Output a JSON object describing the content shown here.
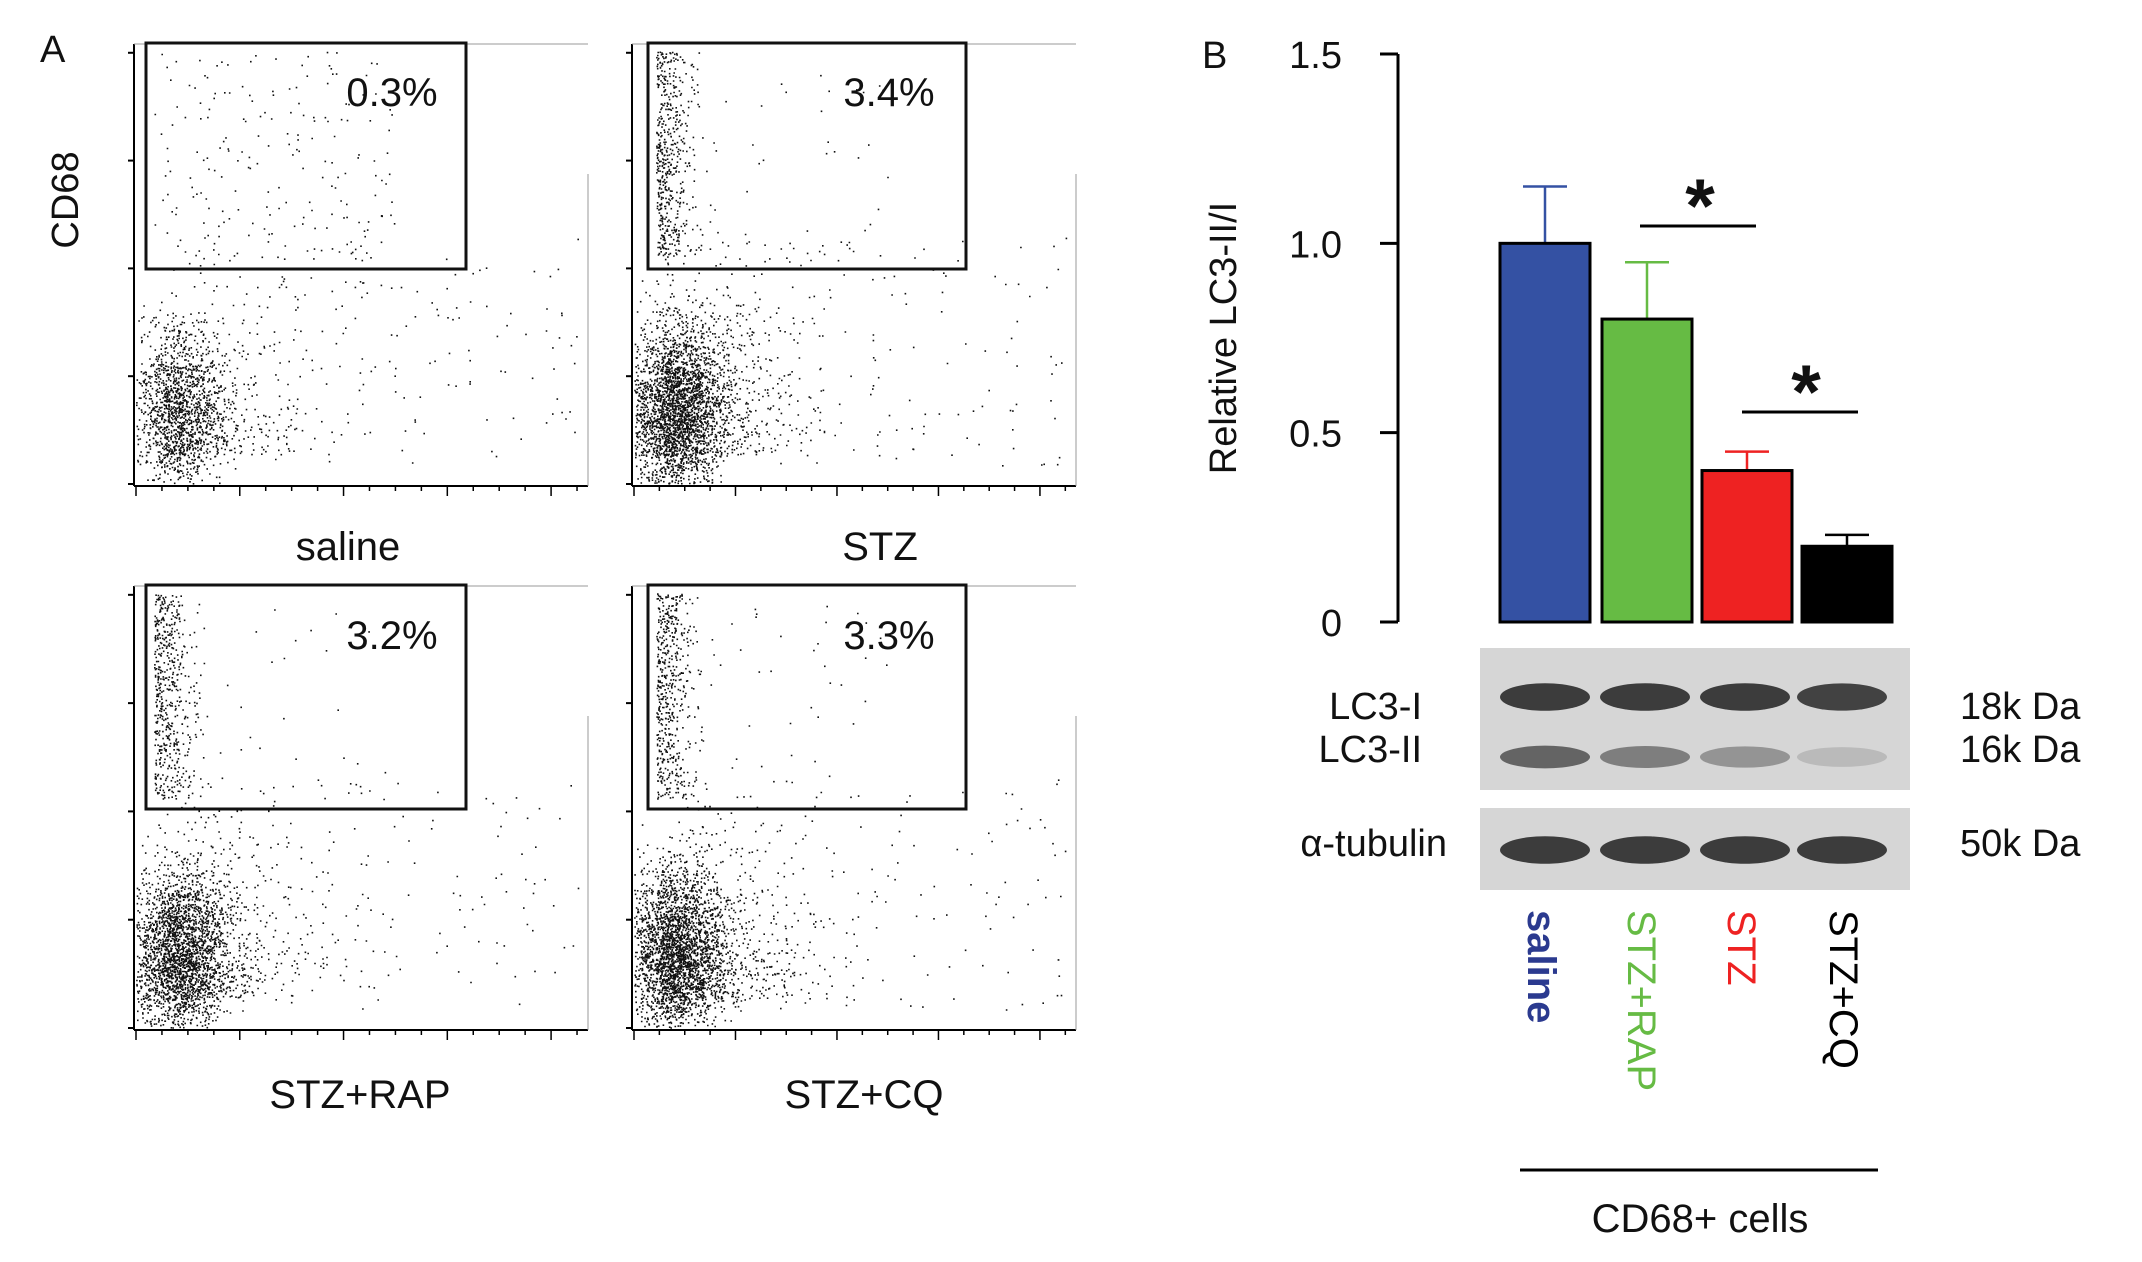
{
  "panel_a": {
    "letter": "A",
    "y_axis_label": "CD68",
    "plots": [
      {
        "name": "saline",
        "label": "saline",
        "gate_pct": "0.3%"
      },
      {
        "name": "stz",
        "label": "STZ",
        "gate_pct": "3.4%"
      },
      {
        "name": "stz-rap",
        "label": "STZ+RAP",
        "gate_pct": "3.2%"
      },
      {
        "name": "stz-cq",
        "label": "STZ+CQ",
        "gate_pct": "3.3%"
      }
    ]
  },
  "panel_b": {
    "letter": "B",
    "ylabel": "Relative LC3-II/I",
    "significance_marks": [
      "*",
      "*"
    ],
    "blot": {
      "bands": [
        {
          "label": "LC3-I",
          "size": "18k Da",
          "intensities": [
            0.92,
            0.92,
            0.92,
            0.9
          ]
        },
        {
          "label": "LC3-II",
          "size": "16k Da",
          "intensities": [
            0.75,
            0.62,
            0.5,
            0.22
          ]
        },
        {
          "label": "α-tubulin",
          "size": "50k Da",
          "intensities": [
            0.92,
            0.92,
            0.92,
            0.92
          ]
        }
      ]
    },
    "group_bracket_label": "CD68+ cells"
  },
  "chart_data": {
    "type": "bar",
    "categories": [
      "saline",
      "STZ+RAP",
      "STZ",
      "STZ+CQ"
    ],
    "values": [
      1.0,
      0.8,
      0.4,
      0.2
    ],
    "errors": [
      0.15,
      0.15,
      0.05,
      0.03
    ],
    "colors": [
      "#3451a3",
      "#66bb44",
      "#ee2222",
      "#000000"
    ],
    "ylabel": "Relative LC3-II/I",
    "ylim": [
      0,
      1.5
    ],
    "yticks": [
      0,
      0.5,
      1.0,
      1.5
    ],
    "ytick_labels": [
      "0",
      "0.5",
      "1.0",
      "1.5"
    ],
    "significance": [
      {
        "between": [
          "STZ+RAP",
          "STZ"
        ],
        "mark": "*"
      },
      {
        "between": [
          "STZ",
          "STZ+CQ"
        ],
        "mark": "*"
      }
    ]
  }
}
